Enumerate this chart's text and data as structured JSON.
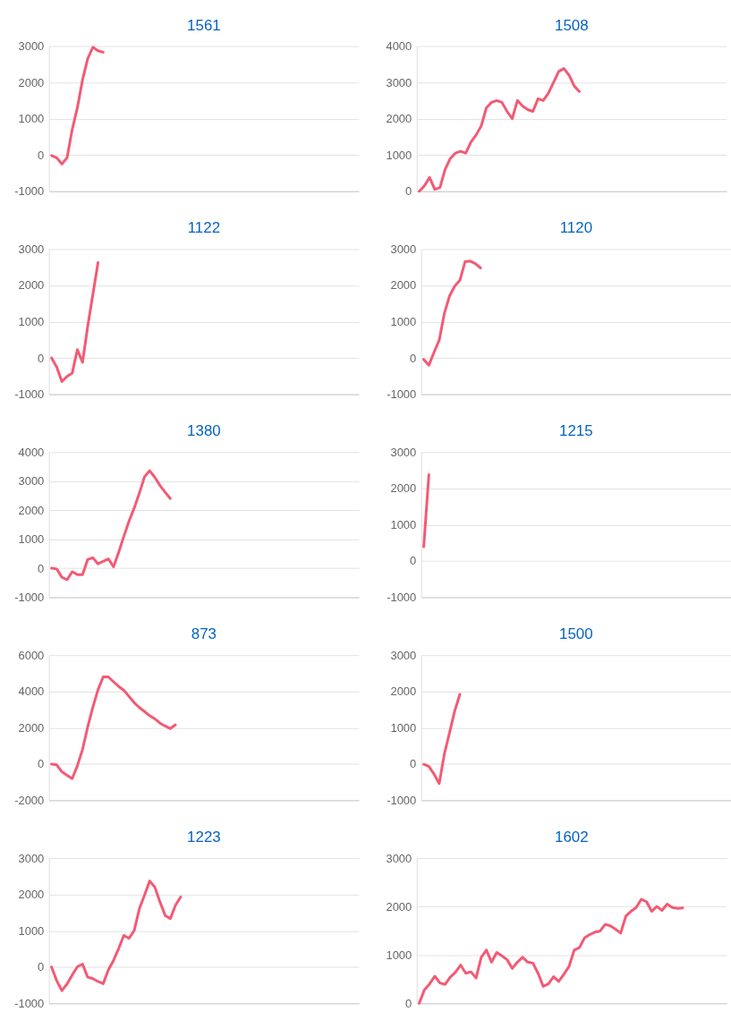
{
  "chart_data": [
    {
      "type": "line",
      "title": "1561",
      "color": "#f35a74",
      "grid": "y",
      "tick_labels": "y",
      "ylim": [
        -1000,
        3000
      ],
      "yticks": [
        -1000,
        0,
        1000,
        2000,
        3000
      ],
      "categories": [
        null,
        null,
        null,
        null,
        null,
        null,
        null,
        null,
        null,
        null,
        null,
        null,
        null,
        null,
        null,
        null,
        null,
        null,
        null,
        null,
        null,
        null,
        null,
        null,
        null,
        null,
        null,
        null,
        null,
        null,
        null,
        null,
        null,
        null,
        null,
        null,
        null,
        null,
        null,
        null,
        null,
        null,
        null,
        null,
        null,
        null,
        null,
        null,
        null,
        null,
        null,
        null,
        null,
        null,
        null,
        null,
        null,
        null,
        null,
        null
      ],
      "values": [
        -15,
        -80,
        -250,
        -80,
        700,
        1300,
        2070,
        2650,
        2970,
        2870,
        2830,
        null,
        null,
        null,
        null,
        null,
        null,
        null,
        null,
        null,
        null,
        null,
        null,
        null,
        null,
        null,
        null,
        null,
        null,
        null,
        null,
        null,
        null,
        null,
        null,
        null,
        null,
        null,
        null,
        null,
        null,
        null,
        null,
        null,
        null,
        null,
        null,
        null,
        null,
        null,
        null,
        null,
        null,
        null,
        null,
        null,
        null,
        null,
        null,
        null
      ]
    },
    {
      "type": "line",
      "title": "1508",
      "color": "#f35a74",
      "grid": "y",
      "tick_labels": "y",
      "ylim": [
        0,
        4000
      ],
      "yticks": [
        0,
        1000,
        2000,
        3000,
        4000
      ],
      "categories": [
        null,
        null,
        null,
        null,
        null,
        null,
        null,
        null,
        null,
        null,
        null,
        null,
        null,
        null,
        null,
        null,
        null,
        null,
        null,
        null,
        null,
        null,
        null,
        null,
        null,
        null,
        null,
        null,
        null,
        null,
        null,
        null,
        null,
        null,
        null,
        null,
        null,
        null,
        null,
        null,
        null,
        null,
        null,
        null,
        null,
        null,
        null,
        null,
        null,
        null,
        null,
        null,
        null,
        null,
        null,
        null,
        null,
        null,
        null,
        null
      ],
      "values": [
        0,
        150,
        380,
        50,
        100,
        600,
        900,
        1050,
        1100,
        1050,
        1350,
        1550,
        1800,
        2300,
        2450,
        2500,
        2450,
        2200,
        2000,
        2500,
        2350,
        2250,
        2200,
        2550,
        2500,
        2700,
        3000,
        3300,
        3380,
        3200,
        2900,
        2750,
        null,
        null,
        null,
        null,
        null,
        null,
        null,
        null,
        null,
        null,
        null,
        null,
        null,
        null,
        null,
        null,
        null,
        null,
        null,
        null,
        null,
        null,
        null,
        null,
        null,
        null,
        null,
        null
      ]
    },
    {
      "type": "line",
      "title": "1122",
      "color": "#f35a74",
      "grid": "y",
      "tick_labels": "y",
      "ylim": [
        -1000,
        3000
      ],
      "yticks": [
        -1000,
        0,
        1000,
        2000,
        3000
      ],
      "categories": [
        null,
        null,
        null,
        null,
        null,
        null,
        null,
        null,
        null,
        null,
        null,
        null,
        null,
        null,
        null,
        null,
        null,
        null,
        null,
        null,
        null,
        null,
        null,
        null,
        null,
        null,
        null,
        null,
        null,
        null,
        null,
        null,
        null,
        null,
        null,
        null,
        null,
        null,
        null,
        null,
        null,
        null,
        null,
        null,
        null,
        null,
        null,
        null,
        null,
        null,
        null,
        null,
        null,
        null,
        null,
        null,
        null,
        null,
        null,
        null
      ],
      "values": [
        0,
        -250,
        -650,
        -510,
        -420,
        230,
        -120,
        870,
        1750,
        2630,
        null,
        null,
        null,
        null,
        null,
        null,
        null,
        null,
        null,
        null,
        null,
        null,
        null,
        null,
        null,
        null,
        null,
        null,
        null,
        null,
        null,
        null,
        null,
        null,
        null,
        null,
        null,
        null,
        null,
        null,
        null,
        null,
        null,
        null,
        null,
        null,
        null,
        null,
        null,
        null,
        null,
        null,
        null,
        null,
        null,
        null,
        null,
        null,
        null,
        null
      ]
    },
    {
      "type": "line",
      "title": "1120",
      "color": "#f35a74",
      "grid": "y",
      "tick_labels": "y",
      "ylim": [
        -1000,
        3000
      ],
      "yticks": [
        -1000,
        0,
        1000,
        2000,
        3000
      ],
      "categories": [
        null,
        null,
        null,
        null,
        null,
        null,
        null,
        null,
        null,
        null,
        null,
        null,
        null,
        null,
        null,
        null,
        null,
        null,
        null,
        null,
        null,
        null,
        null,
        null,
        null,
        null,
        null,
        null,
        null,
        null,
        null,
        null,
        null,
        null,
        null,
        null,
        null,
        null,
        null,
        null,
        null,
        null,
        null,
        null,
        null,
        null,
        null,
        null,
        null,
        null,
        null,
        null,
        null,
        null,
        null,
        null,
        null,
        null,
        null,
        null
      ],
      "values": [
        -40,
        -200,
        155,
        490,
        1230,
        1710,
        1980,
        2140,
        2650,
        2670,
        2600,
        2480,
        null,
        null,
        null,
        null,
        null,
        null,
        null,
        null,
        null,
        null,
        null,
        null,
        null,
        null,
        null,
        null,
        null,
        null,
        null,
        null,
        null,
        null,
        null,
        null,
        null,
        null,
        null,
        null,
        null,
        null,
        null,
        null,
        null,
        null,
        null,
        null,
        null,
        null,
        null,
        null,
        null,
        null,
        null,
        null,
        null,
        null,
        null,
        null
      ]
    },
    {
      "type": "line",
      "title": "1380",
      "color": "#f35a74",
      "grid": "y",
      "tick_labels": "y",
      "ylim": [
        -1000,
        4000
      ],
      "yticks": [
        -1000,
        0,
        1000,
        2000,
        3000,
        4000
      ],
      "categories": [
        null,
        null,
        null,
        null,
        null,
        null,
        null,
        null,
        null,
        null,
        null,
        null,
        null,
        null,
        null,
        null,
        null,
        null,
        null,
        null,
        null,
        null,
        null,
        null,
        null,
        null,
        null,
        null,
        null,
        null,
        null,
        null,
        null,
        null,
        null,
        null,
        null,
        null,
        null,
        null,
        null,
        null,
        null,
        null,
        null,
        null,
        null,
        null,
        null,
        null,
        null,
        null,
        null,
        null,
        null,
        null,
        null,
        null,
        null,
        null
      ],
      "values": [
        0,
        -25,
        -310,
        -400,
        -120,
        -220,
        -220,
        300,
        360,
        150,
        240,
        320,
        50,
        550,
        1100,
        1620,
        2070,
        2580,
        3150,
        3360,
        3130,
        2850,
        2620,
        2400,
        null,
        null,
        null,
        null,
        null,
        null,
        null,
        null,
        null,
        null,
        null,
        null,
        null,
        null,
        null,
        null,
        null,
        null,
        null,
        null,
        null,
        null,
        null,
        null,
        null,
        null,
        null,
        null,
        null,
        null,
        null,
        null,
        null,
        null,
        null,
        null
      ]
    },
    {
      "type": "line",
      "title": "1215",
      "color": "#f35a74",
      "grid": "y",
      "tick_labels": "y",
      "ylim": [
        -1000,
        3000
      ],
      "yticks": [
        -1000,
        0,
        1000,
        2000,
        3000
      ],
      "categories": [
        null,
        null,
        null,
        null,
        null,
        null,
        null,
        null,
        null,
        null,
        null,
        null,
        null,
        null,
        null,
        null,
        null,
        null,
        null,
        null,
        null,
        null,
        null,
        null,
        null,
        null,
        null,
        null,
        null,
        null,
        null,
        null,
        null,
        null,
        null,
        null,
        null,
        null,
        null,
        null,
        null,
        null,
        null,
        null,
        null,
        null,
        null,
        null,
        null,
        null,
        null,
        null,
        null,
        null,
        null,
        null,
        null,
        null,
        null,
        null
      ],
      "values": [
        390,
        2380,
        null,
        null,
        null,
        null,
        null,
        null,
        null,
        null,
        null,
        null,
        null,
        null,
        null,
        null,
        null,
        null,
        null,
        null,
        null,
        null,
        null,
        null,
        null,
        null,
        null,
        null,
        null,
        null,
        null,
        null,
        null,
        null,
        null,
        null,
        null,
        null,
        null,
        null,
        null,
        null,
        null,
        null,
        null,
        null,
        null,
        null,
        null,
        null,
        null,
        null,
        null,
        null,
        null,
        null,
        null,
        null,
        null,
        null
      ]
    },
    {
      "type": "line",
      "title": "873",
      "color": "#f35a74",
      "grid": "y",
      "tick_labels": "y",
      "ylim": [
        -2000,
        6000
      ],
      "yticks": [
        -2000,
        0,
        2000,
        4000,
        6000
      ],
      "categories": [
        null,
        null,
        null,
        null,
        null,
        null,
        null,
        null,
        null,
        null,
        null,
        null,
        null,
        null,
        null,
        null,
        null,
        null,
        null,
        null,
        null,
        null,
        null,
        null,
        null,
        null,
        null,
        null,
        null,
        null,
        null,
        null,
        null,
        null,
        null,
        null,
        null,
        null,
        null,
        null,
        null,
        null,
        null,
        null,
        null,
        null,
        null,
        null,
        null,
        null,
        null,
        null,
        null,
        null,
        null,
        null,
        null,
        null,
        null,
        null
      ],
      "values": [
        -10,
        -50,
        -430,
        -620,
        -810,
        -100,
        800,
        2040,
        3130,
        4090,
        4800,
        4800,
        4530,
        4270,
        4060,
        3720,
        3380,
        3110,
        2890,
        2660,
        2490,
        2250,
        2090,
        1950,
        2160,
        null,
        null,
        null,
        null,
        null,
        null,
        null,
        null,
        null,
        null,
        null,
        null,
        null,
        null,
        null,
        null,
        null,
        null,
        null,
        null,
        null,
        null,
        null,
        null,
        null,
        null,
        null,
        null,
        null,
        null,
        null,
        null,
        null,
        null,
        null
      ]
    },
    {
      "type": "line",
      "title": "1500",
      "color": "#f35a74",
      "grid": "y",
      "tick_labels": "y",
      "ylim": [
        -1000,
        3000
      ],
      "yticks": [
        -1000,
        0,
        1000,
        2000,
        3000
      ],
      "categories": [
        null,
        null,
        null,
        null,
        null,
        null,
        null,
        null,
        null,
        null,
        null,
        null,
        null,
        null,
        null,
        null,
        null,
        null,
        null,
        null,
        null,
        null,
        null,
        null,
        null,
        null,
        null,
        null,
        null,
        null,
        null,
        null,
        null,
        null,
        null,
        null,
        null,
        null,
        null,
        null,
        null,
        null,
        null,
        null,
        null,
        null,
        null,
        null,
        null,
        null,
        null,
        null,
        null,
        null,
        null,
        null,
        null,
        null,
        null,
        null
      ],
      "values": [
        -10,
        -70,
        -280,
        -540,
        280,
        860,
        1460,
        1920,
        null,
        null,
        null,
        null,
        null,
        null,
        null,
        null,
        null,
        null,
        null,
        null,
        null,
        null,
        null,
        null,
        null,
        null,
        null,
        null,
        null,
        null,
        null,
        null,
        null,
        null,
        null,
        null,
        null,
        null,
        null,
        null,
        null,
        null,
        null,
        null,
        null,
        null,
        null,
        null,
        null,
        null,
        null,
        null,
        null,
        null,
        null,
        null,
        null,
        null,
        null,
        null
      ]
    },
    {
      "type": "line",
      "title": "1223",
      "color": "#f35a74",
      "grid": "y",
      "tick_labels": "y",
      "ylim": [
        -1000,
        3000
      ],
      "yticks": [
        -1000,
        0,
        1000,
        2000,
        3000
      ],
      "categories": [
        null,
        null,
        null,
        null,
        null,
        null,
        null,
        null,
        null,
        null,
        null,
        null,
        null,
        null,
        null,
        null,
        null,
        null,
        null,
        null,
        null,
        null,
        null,
        null,
        null,
        null,
        null,
        null,
        null,
        null,
        null,
        null,
        null,
        null,
        null,
        null,
        null,
        null,
        null,
        null,
        null,
        null,
        null,
        null,
        null,
        null,
        null,
        null,
        null,
        null,
        null,
        null,
        null,
        null,
        null,
        null,
        null,
        null,
        null,
        null
      ],
      "values": [
        0,
        -380,
        -650,
        -470,
        -220,
        5,
        80,
        -280,
        -320,
        -400,
        -460,
        -80,
        180,
        510,
        870,
        790,
        1000,
        1600,
        1980,
        2370,
        2200,
        1790,
        1420,
        1330,
        1700,
        1930,
        null,
        null,
        null,
        null,
        null,
        null,
        null,
        null,
        null,
        null,
        null,
        null,
        null,
        null,
        null,
        null,
        null,
        null,
        null,
        null,
        null,
        null,
        null,
        null,
        null,
        null,
        null,
        null,
        null,
        null,
        null,
        null,
        null,
        null
      ]
    },
    {
      "type": "line",
      "title": "1602",
      "color": "#f35a74",
      "grid": "y",
      "tick_labels": "y",
      "ylim": [
        0,
        3000
      ],
      "yticks": [
        0,
        1000,
        2000,
        3000
      ],
      "categories": [
        null,
        null,
        null,
        null,
        null,
        null,
        null,
        null,
        null,
        null,
        null,
        null,
        null,
        null,
        null,
        null,
        null,
        null,
        null,
        null,
        null,
        null,
        null,
        null,
        null,
        null,
        null,
        null,
        null,
        null,
        null,
        null,
        null,
        null,
        null,
        null,
        null,
        null,
        null,
        null,
        null,
        null,
        null,
        null,
        null,
        null,
        null,
        null,
        null,
        null,
        null,
        null,
        null,
        null,
        null,
        null,
        null,
        null,
        null,
        null
      ],
      "values": [
        0,
        280,
        400,
        560,
        420,
        390,
        540,
        640,
        790,
        620,
        650,
        520,
        950,
        1100,
        850,
        1050,
        980,
        900,
        720,
        850,
        950,
        850,
        830,
        620,
        350,
        400,
        550,
        450,
        600,
        760,
        1100,
        1150,
        1350,
        1420,
        1470,
        1490,
        1630,
        1600,
        1530,
        1450,
        1800,
        1900,
        1980,
        2150,
        2100,
        1900,
        2000,
        1920,
        2050,
        1980,
        1960,
        1970,
        null,
        null,
        null,
        null,
        null,
        null,
        null,
        null
      ]
    }
  ]
}
